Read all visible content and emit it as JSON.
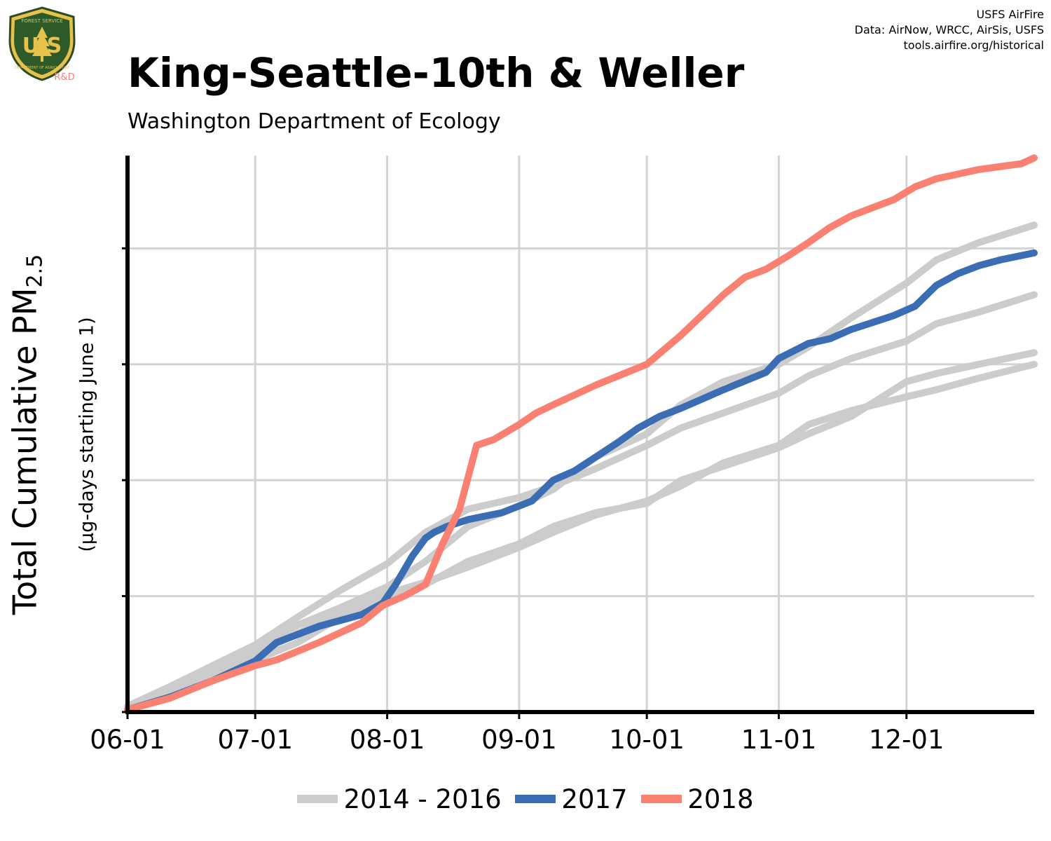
{
  "logo": {
    "top_text": "FOREST SERVICE",
    "letters": "U S",
    "bottom_text": "DEPARTMENT OF AGRICULTURE",
    "tag": "R&D"
  },
  "credits": {
    "line1": "USFS AirFire",
    "line2": "Data: AirNow, WRCC, AirSis, USFS",
    "line3": "tools.airfire.org/historical"
  },
  "colors": {
    "gray": "#cccccc",
    "blue": "#3a6db3",
    "salmon": "#fa8072",
    "grid": "#d3d3d3",
    "axis": "#000000"
  },
  "chart_data": {
    "type": "line",
    "title": "King-Seattle-10th & Weller",
    "subtitle": "Washington Department of Ecology",
    "ylabel_main": "Total Cumulative PM",
    "ylabel_sub_script": "2.5",
    "ylabel_note": "(µg-days starting June 1)",
    "x_ticks": [
      "06-01",
      "07-01",
      "08-01",
      "09-01",
      "10-01",
      "11-01",
      "12-01"
    ],
    "x_tick_days": [
      0,
      30,
      61,
      92,
      122,
      153,
      183
    ],
    "xlim": [
      0,
      213
    ],
    "ylim": [
      0,
      4.8
    ],
    "y_ticks": [
      0,
      1,
      2,
      3,
      4
    ],
    "y_tick_labels_shown": false,
    "grid": true,
    "legend_position": "bottom",
    "legend": [
      "2014 - 2016",
      "2017",
      "2018"
    ],
    "series": [
      {
        "group": "2014 - 2016",
        "color": "gray",
        "x": [
          0,
          10,
          20,
          30,
          40,
          50,
          61,
          70,
          80,
          92,
          100,
          110,
          122,
          130,
          140,
          153,
          160,
          170,
          183,
          190,
          200,
          213
        ],
        "y": [
          0.05,
          0.22,
          0.4,
          0.58,
          0.82,
          1.05,
          1.28,
          1.55,
          1.75,
          1.85,
          1.95,
          2.1,
          2.3,
          2.45,
          2.58,
          2.75,
          2.9,
          3.05,
          3.2,
          3.35,
          3.45,
          3.6
        ]
      },
      {
        "group": "2014 - 2016",
        "color": "gray",
        "x": [
          0,
          10,
          20,
          30,
          40,
          50,
          61,
          70,
          80,
          92,
          100,
          110,
          122,
          130,
          140,
          153,
          160,
          170,
          183,
          190,
          200,
          213
        ],
        "y": [
          0.03,
          0.2,
          0.38,
          0.56,
          0.75,
          0.9,
          1.08,
          1.3,
          1.6,
          1.78,
          1.92,
          2.2,
          2.4,
          2.65,
          2.85,
          3.0,
          3.15,
          3.4,
          3.7,
          3.9,
          4.05,
          4.2
        ]
      },
      {
        "group": "2014 - 2016",
        "color": "gray",
        "x": [
          0,
          10,
          20,
          30,
          40,
          50,
          61,
          70,
          80,
          92,
          100,
          110,
          122,
          130,
          140,
          153,
          160,
          170,
          183,
          190,
          200,
          213
        ],
        "y": [
          0.03,
          0.18,
          0.33,
          0.5,
          0.68,
          0.85,
          1.02,
          1.12,
          1.25,
          1.42,
          1.55,
          1.7,
          1.82,
          1.95,
          2.15,
          2.3,
          2.48,
          2.6,
          2.72,
          2.78,
          2.88,
          3.0
        ]
      },
      {
        "group": "2014 - 2016",
        "color": "gray",
        "x": [
          0,
          10,
          20,
          30,
          40,
          50,
          61,
          70,
          80,
          92,
          100,
          110,
          122,
          130,
          140,
          153,
          160,
          170,
          183,
          190,
          200,
          213
        ],
        "y": [
          0.02,
          0.15,
          0.3,
          0.45,
          0.6,
          0.82,
          1.0,
          1.1,
          1.3,
          1.45,
          1.6,
          1.72,
          1.8,
          2.0,
          2.12,
          2.28,
          2.4,
          2.55,
          2.85,
          2.92,
          3.0,
          3.1
        ]
      },
      {
        "group": "2017",
        "color": "blue",
        "x": [
          0,
          10,
          20,
          30,
          35,
          45,
          55,
          60,
          63,
          67,
          70,
          72,
          75,
          80,
          88,
          95,
          100,
          105,
          110,
          115,
          120,
          125,
          130,
          135,
          140,
          150,
          153,
          160,
          165,
          170,
          175,
          180,
          185,
          190,
          195,
          200,
          205,
          213
        ],
        "y": [
          0.02,
          0.13,
          0.27,
          0.44,
          0.6,
          0.74,
          0.84,
          0.94,
          1.1,
          1.35,
          1.5,
          1.55,
          1.6,
          1.66,
          1.72,
          1.82,
          2.0,
          2.08,
          2.2,
          2.32,
          2.45,
          2.55,
          2.62,
          2.7,
          2.78,
          2.93,
          3.05,
          3.18,
          3.22,
          3.3,
          3.36,
          3.42,
          3.5,
          3.68,
          3.78,
          3.85,
          3.9,
          3.96
        ]
      },
      {
        "group": "2018",
        "color": "salmon",
        "x": [
          0,
          10,
          20,
          30,
          35,
          45,
          55,
          60,
          65,
          70,
          74,
          78,
          82,
          86,
          92,
          96,
          100,
          110,
          122,
          130,
          140,
          145,
          150,
          155,
          160,
          165,
          170,
          175,
          180,
          185,
          190,
          200,
          210,
          213
        ],
        "y": [
          0.02,
          0.12,
          0.27,
          0.4,
          0.45,
          0.6,
          0.77,
          0.92,
          1.0,
          1.1,
          1.45,
          1.75,
          2.3,
          2.35,
          2.48,
          2.58,
          2.65,
          2.82,
          3.0,
          3.25,
          3.6,
          3.75,
          3.82,
          3.93,
          4.05,
          4.18,
          4.28,
          4.35,
          4.42,
          4.53,
          4.6,
          4.68,
          4.73,
          4.78
        ]
      }
    ]
  }
}
